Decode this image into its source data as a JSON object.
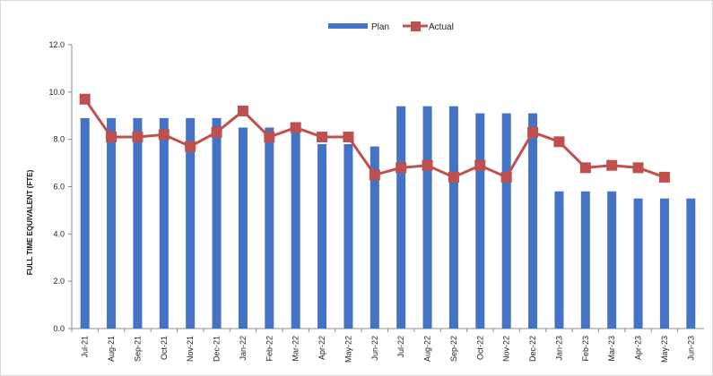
{
  "chart_data": {
    "type": "bar",
    "title": "",
    "xlabel": "",
    "ylabel": "FULL TIME EQUIVALENT (FTE)",
    "ylim": [
      0,
      12
    ],
    "yticks": [
      "0.0",
      "2.0",
      "4.0",
      "6.0",
      "8.0",
      "10.0",
      "12.0"
    ],
    "grid": false,
    "legend_position": "top-center",
    "categories": [
      "Jul-21",
      "Aug-21",
      "Sep-21",
      "Oct-21",
      "Nov-21",
      "Dec-21",
      "Jan-22",
      "Feb-22",
      "Mar-22",
      "Apr-22",
      "May-22",
      "Jun-22",
      "Jul-22",
      "Aug-22",
      "Sep-22",
      "Oct-22",
      "Nov-22",
      "Dec-22",
      "Jan-23",
      "Feb-23",
      "Mar-23",
      "Apr-23",
      "May-23",
      "Jun-23"
    ],
    "series": [
      {
        "name": "Plan",
        "kind": "bar",
        "color": "#4472c4",
        "values": [
          8.9,
          8.9,
          8.9,
          8.9,
          8.9,
          8.9,
          8.5,
          8.5,
          8.5,
          7.8,
          7.8,
          7.7,
          9.4,
          9.4,
          9.4,
          9.1,
          9.1,
          9.1,
          5.8,
          5.8,
          5.8,
          5.5,
          5.5,
          5.5
        ]
      },
      {
        "name": "Actual",
        "kind": "line",
        "color": "#c0504d",
        "values": [
          9.7,
          8.1,
          8.1,
          8.2,
          7.7,
          8.3,
          9.2,
          8.1,
          8.5,
          8.1,
          8.1,
          6.5,
          6.8,
          6.9,
          6.4,
          6.9,
          6.4,
          8.3,
          7.9,
          6.8,
          6.9,
          6.8,
          6.4,
          null
        ]
      }
    ]
  }
}
